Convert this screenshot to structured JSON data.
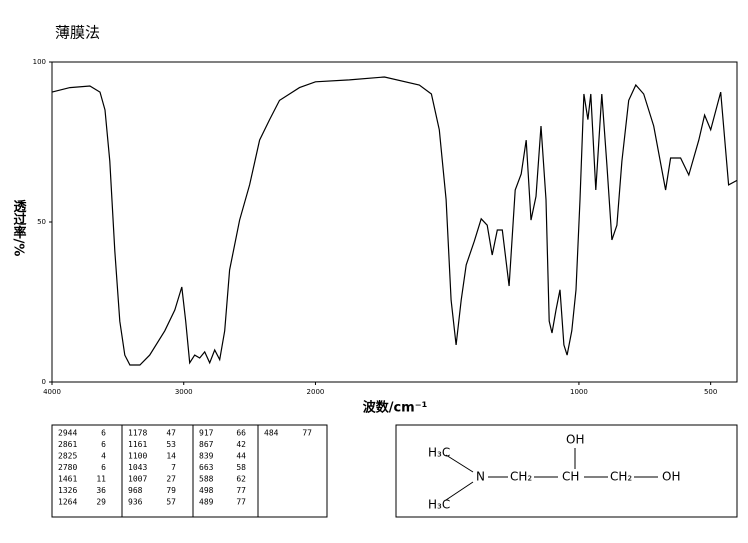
{
  "chart_data": {
    "type": "line",
    "title": "薄膜法",
    "x_label": "波数/cm⁻¹",
    "y_label": "透过率/%",
    "x": [
      4000,
      3864,
      3712,
      3636,
      3598,
      3561,
      3523,
      3485,
      3447,
      3409,
      3333,
      3258,
      3144,
      3068,
      3015,
      2985,
      2955,
      2917,
      2879,
      2841,
      2803,
      2765,
      2727,
      2689,
      2652,
      2576,
      2500,
      2424,
      2348,
      2273,
      2197,
      2121,
      2000,
      1871,
      1738,
      1606,
      1560,
      1530,
      1504,
      1485,
      1466,
      1447,
      1428,
      1397,
      1371,
      1348,
      1329,
      1310,
      1291,
      1265,
      1242,
      1219,
      1200,
      1182,
      1163,
      1144,
      1125,
      1113,
      1102,
      1087,
      1072,
      1057,
      1045,
      1027,
      1011,
      996,
      981,
      966,
      955,
      936,
      913,
      894,
      875,
      856,
      837,
      811,
      784,
      754,
      716,
      671,
      652,
      614,
      583,
      545,
      523,
      500,
      462,
      432,
      400
    ],
    "values": [
      90.6,
      92,
      92.5,
      90.6,
      85,
      69,
      41,
      19,
      8.4,
      5.3,
      5.3,
      8.4,
      16,
      22.5,
      29.7,
      19,
      6,
      8.4,
      7.5,
      9.4,
      6,
      10,
      7,
      16,
      35,
      50.6,
      61.6,
      75.6,
      82,
      88,
      90,
      92,
      93.8,
      94.4,
      95.3,
      92.8,
      90,
      78.8,
      57,
      25.6,
      11.6,
      25.6,
      36.6,
      44,
      51,
      49,
      39.7,
      47.5,
      47.5,
      30,
      60,
      65,
      75.6,
      50.6,
      58,
      80,
      57,
      19,
      15.3,
      22.5,
      28.8,
      11.6,
      8.4,
      16,
      28.8,
      57,
      90,
      82,
      90,
      60,
      90,
      67.8,
      44.4,
      49,
      69,
      88,
      92.8,
      90,
      80,
      60,
      70,
      70,
      64.7,
      75.6,
      83.4,
      78.8,
      90.6,
      61.6,
      63
    ],
    "color": "#000000",
    "xlim": [
      4000,
      400
    ],
    "x_expand_below": 2000,
    "x_expand_factor": 2,
    "ylim": [
      0,
      100
    ],
    "xticks": [
      4000,
      3000,
      2000,
      1000,
      500
    ],
    "yticks": [
      0,
      50,
      100
    ]
  },
  "peak_table": {
    "columns": [
      [
        [
          "2944",
          "6"
        ],
        [
          "2861",
          "6"
        ],
        [
          "2825",
          "4"
        ],
        [
          "2780",
          "6"
        ],
        [
          "1461",
          "11"
        ],
        [
          "1326",
          "36"
        ],
        [
          "1264",
          "29"
        ]
      ],
      [
        [
          "1178",
          "47"
        ],
        [
          "1161",
          "53"
        ],
        [
          "1100",
          "14"
        ],
        [
          "1043",
          "7"
        ],
        [
          "1007",
          "27"
        ],
        [
          "968",
          "79"
        ],
        [
          "936",
          "57"
        ]
      ],
      [
        [
          "917",
          "66"
        ],
        [
          "867",
          "42"
        ],
        [
          "839",
          "44"
        ],
        [
          "663",
          "58"
        ],
        [
          "588",
          "62"
        ],
        [
          "498",
          "77"
        ],
        [
          "489",
          "77"
        ]
      ],
      [
        [
          "484",
          "77"
        ]
      ]
    ]
  },
  "structure": {
    "methyl_top": "H₃C",
    "nitrogen": "N",
    "ch2_left": "CH₂",
    "ch": "CH",
    "oh_top": "OH",
    "ch2_right": "CH₂",
    "oh_right": "OH",
    "methyl_bottom": "H₃C"
  }
}
